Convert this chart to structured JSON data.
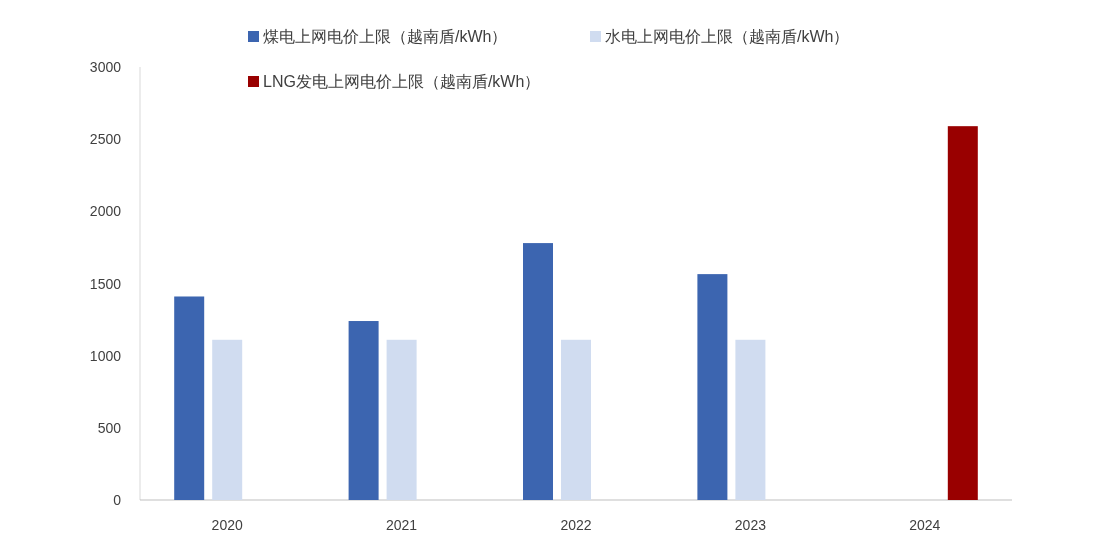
{
  "chart_data": {
    "type": "bar",
    "categories": [
      "2020",
      "2021",
      "2022",
      "2023",
      "2024"
    ],
    "series": [
      {
        "name": "煤电上网电价上限（越南盾/kWh）",
        "color": "#3c65b0",
        "values": [
          1410,
          1240,
          1780,
          1565,
          null
        ]
      },
      {
        "name": "水电上网电价上限（越南盾/kWh）",
        "color": "#d0dcf0",
        "values": [
          1110,
          1110,
          1110,
          1110,
          null
        ]
      },
      {
        "name": "LNG发电上网电价上限（越南盾/kWh）",
        "color": "#990000",
        "values": [
          null,
          null,
          null,
          null,
          2590
        ]
      }
    ],
    "ylim": [
      0,
      3000
    ],
    "yticks": [
      0,
      500,
      1000,
      1500,
      2000,
      2500,
      3000
    ],
    "grid": false,
    "legend": "top"
  }
}
